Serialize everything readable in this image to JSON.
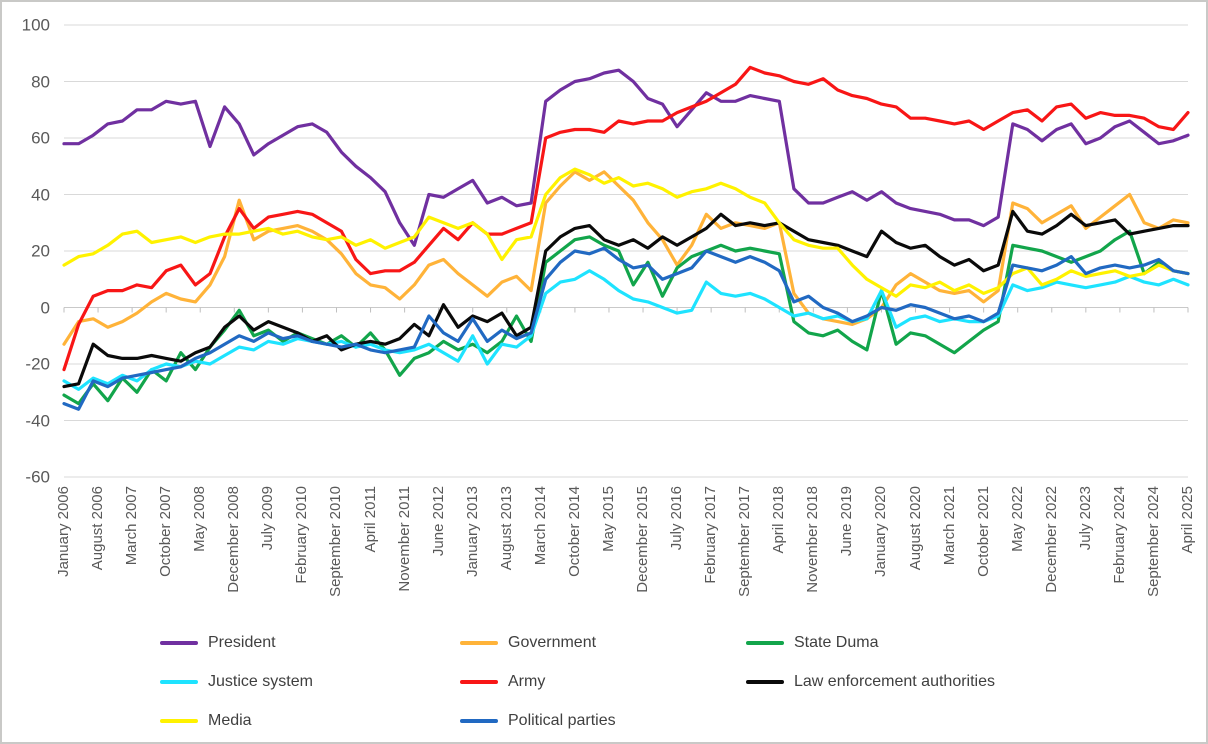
{
  "page": {
    "background": "#FFFFFF",
    "border_color": "#C9C9C7",
    "description": "Line chart of trust in institutions, January 2006 - April 2025"
  },
  "chart_data": {
    "type": "line",
    "title": "",
    "xlabel": "",
    "ylabel": "",
    "grid": true,
    "gridline_color": "#D9D9D9",
    "zero_axis_color": "#C9C9C9",
    "tick_mark_color": "#BFBFBF",
    "axis_label_color": "#595959",
    "legend_position": "bottom",
    "legend_columns": 3,
    "y_ticks": [
      100,
      80,
      60,
      40,
      20,
      0,
      -20,
      -40,
      -60
    ],
    "ylim": [
      -60,
      100
    ],
    "x_start_month": "January 2006",
    "x_end_month": "April 2025",
    "x_total_months": 231,
    "sample_step_months": 3,
    "x_axis": {
      "label_rotation_degrees": 90,
      "tick_months": [
        0,
        7,
        14,
        21,
        28,
        35,
        42,
        49,
        56,
        63,
        70,
        77,
        84,
        91,
        98,
        105,
        112,
        119,
        126,
        133,
        140,
        147,
        154,
        161,
        168,
        175,
        182,
        189,
        196,
        203,
        210,
        217,
        224,
        231
      ],
      "tick_labels": [
        "January 2006",
        "August 2006",
        "March 2007",
        "October 2007",
        "May 2008",
        "December 2008",
        "July 2009",
        "February 2010",
        "September 2010",
        "April 2011",
        "November 2011",
        "June 2012",
        "January 2013",
        "August 2013",
        "March 2014",
        "October 2014",
        "May 2015",
        "December 2015",
        "July 2016",
        "February 2017",
        "September 2017",
        "April 2018",
        "November 2018",
        "June 2019",
        "January 2020",
        "August 2020",
        "March 2021",
        "October 2021",
        "May 2022",
        "December 2022",
        "July 2023",
        "February 2024",
        "September 2024",
        "April 2025"
      ]
    },
    "series": [
      {
        "name": "President",
        "color": "#7030A0",
        "values": [
          58,
          58,
          61,
          65,
          66,
          70,
          70,
          73,
          72,
          73,
          57,
          71,
          65,
          54,
          58,
          61,
          64,
          65,
          62,
          55,
          50,
          46,
          41,
          30,
          22,
          40,
          39,
          42,
          45,
          37,
          39,
          36,
          37,
          73,
          77,
          80,
          81,
          83,
          84,
          80,
          74,
          72,
          64,
          70,
          76,
          73,
          73,
          75,
          74,
          73,
          42,
          37,
          37,
          39,
          41,
          38,
          41,
          37,
          35,
          34,
          33,
          31,
          31,
          29,
          32,
          65,
          63,
          59,
          63,
          65,
          58,
          60,
          64,
          66,
          62,
          58,
          59,
          61
        ]
      },
      {
        "name": "Government",
        "color": "#FFB339",
        "values": [
          -13,
          -5,
          -4,
          -7,
          -5,
          -2,
          2,
          5,
          3,
          2,
          8,
          18,
          38,
          24,
          27,
          28,
          29,
          27,
          24,
          19,
          12,
          8,
          7,
          3,
          8,
          15,
          17,
          12,
          8,
          4,
          9,
          11,
          6,
          37,
          43,
          48,
          45,
          48,
          43,
          38,
          30,
          24,
          15,
          22,
          33,
          28,
          30,
          29,
          28,
          30,
          5,
          -2,
          -4,
          -5,
          -6,
          -4,
          0,
          8,
          12,
          9,
          6,
          5,
          6,
          2,
          6,
          37,
          35,
          30,
          33,
          36,
          28,
          32,
          36,
          40,
          30,
          28,
          31,
          30
        ]
      },
      {
        "name": "State Duma",
        "color": "#12A54B",
        "values": [
          -31,
          -34,
          -27,
          -33,
          -25,
          -30,
          -22,
          -26,
          -16,
          -22,
          -14,
          -8,
          -1,
          -10,
          -8,
          -12,
          -9,
          -11,
          -13,
          -10,
          -14,
          -9,
          -15,
          -24,
          -18,
          -16,
          -12,
          -15,
          -13,
          -16,
          -12,
          -3,
          -12,
          16,
          20,
          24,
          25,
          22,
          20,
          8,
          16,
          4,
          14,
          18,
          20,
          22,
          20,
          21,
          20,
          19,
          -5,
          -9,
          -10,
          -8,
          -12,
          -15,
          6,
          -13,
          -9,
          -10,
          -13,
          -16,
          -12,
          -8,
          -5,
          22,
          21,
          20,
          18,
          16,
          18,
          20,
          24,
          27,
          12,
          16,
          13,
          12
        ]
      },
      {
        "name": "Justice system",
        "color": "#1EE3FF",
        "values": [
          -26,
          -29,
          -25,
          -27,
          -24,
          -26,
          -22,
          -20,
          -21,
          -19,
          -20,
          -17,
          -14,
          -15,
          -12,
          -13,
          -11,
          -12,
          -13,
          -12,
          -14,
          -13,
          -15,
          -16,
          -15,
          -13,
          -16,
          -19,
          -10,
          -20,
          -13,
          -14,
          -10,
          5,
          9,
          10,
          13,
          10,
          6,
          3,
          2,
          0,
          -2,
          -1,
          9,
          5,
          4,
          5,
          3,
          0,
          -3,
          -2,
          -4,
          -3,
          -5,
          -4,
          6,
          -7,
          -4,
          -3,
          -5,
          -4,
          -5,
          -5,
          -3,
          8,
          6,
          7,
          9,
          8,
          7,
          8,
          9,
          11,
          9,
          8,
          10,
          8
        ]
      },
      {
        "name": "Army",
        "color": "#F81616",
        "values": [
          -22,
          -6,
          4,
          6,
          6,
          8,
          7,
          13,
          15,
          8,
          12,
          25,
          35,
          28,
          32,
          33,
          34,
          33,
          30,
          27,
          17,
          12,
          13,
          13,
          16,
          22,
          28,
          24,
          30,
          26,
          26,
          28,
          30,
          60,
          62,
          63,
          63,
          62,
          66,
          65,
          66,
          66,
          69,
          71,
          73,
          76,
          79,
          85,
          83,
          82,
          80,
          79,
          81,
          77,
          75,
          74,
          72,
          71,
          67,
          67,
          66,
          65,
          66,
          63,
          66,
          69,
          70,
          66,
          71,
          72,
          67,
          69,
          68,
          68,
          67,
          64,
          63,
          69
        ]
      },
      {
        "name": "Law enforcement authorities",
        "color": "#0A0A0A",
        "values": [
          -28,
          -27,
          -13,
          -17,
          -18,
          -18,
          -17,
          -18,
          -19,
          -16,
          -14,
          -7,
          -3,
          -8,
          -5,
          -7,
          -9,
          -12,
          -10,
          -15,
          -13,
          -12,
          -13,
          -11,
          -6,
          -10,
          1,
          -7,
          -3,
          -5,
          -2,
          -10,
          -7,
          20,
          25,
          28,
          29,
          24,
          22,
          24,
          21,
          25,
          22,
          25,
          28,
          33,
          29,
          30,
          29,
          30,
          27,
          24,
          23,
          22,
          20,
          18,
          27,
          23,
          21,
          22,
          18,
          15,
          17,
          13,
          15,
          34,
          27,
          26,
          29,
          33,
          29,
          30,
          31,
          26,
          27,
          28,
          29,
          29
        ]
      },
      {
        "name": "Media",
        "color": "#FFF200",
        "values": [
          15,
          18,
          19,
          22,
          26,
          27,
          23,
          24,
          25,
          23,
          25,
          26,
          26,
          27,
          28,
          26,
          27,
          25,
          24,
          25,
          22,
          24,
          21,
          23,
          25,
          32,
          30,
          28,
          30,
          26,
          17,
          24,
          25,
          40,
          46,
          49,
          47,
          44,
          46,
          43,
          44,
          42,
          39,
          41,
          42,
          44,
          42,
          39,
          37,
          30,
          24,
          22,
          21,
          21,
          15,
          10,
          7,
          4,
          8,
          7,
          9,
          6,
          8,
          5,
          7,
          12,
          14,
          8,
          10,
          13,
          11,
          12,
          13,
          11,
          12,
          15,
          13,
          12
        ]
      },
      {
        "name": "Political parties",
        "color": "#2169C2",
        "values": [
          -34,
          -36,
          -26,
          -28,
          -25,
          -24,
          -23,
          -22,
          -21,
          -18,
          -16,
          -13,
          -10,
          -12,
          -9,
          -11,
          -10,
          -12,
          -13,
          -14,
          -13,
          -15,
          -16,
          -15,
          -14,
          -3,
          -9,
          -12,
          -4,
          -12,
          -8,
          -11,
          -9,
          10,
          16,
          20,
          19,
          21,
          17,
          14,
          15,
          10,
          12,
          14,
          20,
          18,
          16,
          18,
          16,
          13,
          2,
          4,
          0,
          -2,
          -5,
          -3,
          0,
          -1,
          1,
          0,
          -2,
          -4,
          -3,
          -5,
          -2,
          15,
          14,
          13,
          15,
          18,
          12,
          14,
          15,
          14,
          15,
          17,
          13,
          12
        ]
      }
    ]
  }
}
